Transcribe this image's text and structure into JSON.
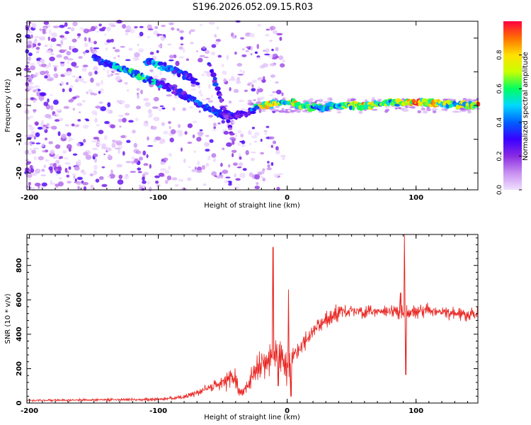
{
  "title": "S196.2026.052.09.15.R03",
  "chart_data": [
    {
      "type": "heatmap",
      "xlabel": "Height of straight line (km)",
      "ylabel": "Frequency (Hz)",
      "xlim": [
        -202,
        148
      ],
      "ylim": [
        -25,
        25
      ],
      "xticks": [
        -200,
        -100,
        0,
        100
      ],
      "yticks": [
        -20,
        -10,
        0,
        10,
        20
      ],
      "xtick_labels": [
        "-200",
        "-100",
        "0",
        "100"
      ],
      "ytick_labels": [
        "-20",
        "-10",
        "0",
        "10",
        "20"
      ],
      "colorbar": {
        "label": "Normalized spectral amplitude",
        "range": [
          0,
          1
        ],
        "ticks": [
          0.0,
          0.2,
          0.4,
          0.6,
          0.8
        ],
        "tick_labels": [
          "0.0",
          "0.2",
          "0.4",
          "0.6",
          "0.8"
        ],
        "colors": [
          "#f0e0ff",
          "#c890f0",
          "#8a2be2",
          "#3a00ff",
          "#0060ff",
          "#00d8ff",
          "#00ff60",
          "#c8ff00",
          "#ffe000",
          "#ff7000",
          "#ff0040"
        ]
      },
      "ridges": [
        {
          "name": "main band",
          "x": [
            -150,
            -140,
            -130,
            -120,
            -110,
            -100,
            -90,
            -80,
            -70,
            -60,
            -50,
            -40,
            -30,
            -20,
            -10,
            0,
            10,
            20,
            30,
            40,
            50,
            60,
            70,
            80,
            90,
            100,
            110,
            120,
            130,
            140,
            148
          ],
          "y": [
            14,
            12.5,
            11,
            9.5,
            8,
            6.5,
            5,
            3,
            1,
            -1,
            -3,
            -3,
            -2,
            0,
            0.5,
            1.5,
            0,
            -0.5,
            -0.5,
            0,
            0,
            0,
            0.2,
            0.8,
            1,
            1,
            0.8,
            0.5,
            0.3,
            0.2,
            0.2
          ],
          "amplitude": [
            0.35,
            0.45,
            0.5,
            0.55,
            0.6,
            0.45,
            0.3,
            0.35,
            0.4,
            0.4,
            0.35,
            0.3,
            0.3,
            0.75,
            0.8,
            0.6,
            0.85,
            0.55,
            0.55,
            0.6,
            0.7,
            0.85,
            0.7,
            0.6,
            0.8,
            0.95,
            0.9,
            0.7,
            0.7,
            0.75,
            0.85
          ]
        },
        {
          "name": "upper branch",
          "x": [
            -110,
            -100,
            -90,
            -80,
            -70
          ],
          "y": [
            13,
            12,
            11,
            9,
            7
          ],
          "amplitude": [
            0.4,
            0.5,
            0.4,
            0.35,
            0.3
          ]
        },
        {
          "name": "dispersive tail",
          "x": [
            -60,
            -55,
            -50,
            -45,
            -42,
            -40
          ],
          "y": [
            12,
            6,
            0,
            -5,
            -10,
            -18
          ],
          "amplitude": [
            0.35,
            0.35,
            0.3,
            0.25,
            0.15,
            0.1
          ]
        }
      ]
    },
    {
      "type": "line",
      "xlabel": "Height of straight line (km)",
      "ylabel": "SNR (10 * v/v)",
      "xlim": [
        -202,
        148
      ],
      "ylim": [
        0,
        980
      ],
      "xticks": [
        -200,
        -100,
        0,
        100
      ],
      "yticks": [
        0,
        200,
        400,
        600,
        800
      ],
      "xtick_labels": [
        "-200",
        "-100",
        "0",
        "100"
      ],
      "ytick_labels": [
        "0",
        "200",
        "400",
        "600",
        "800"
      ],
      "series": [
        {
          "name": "SNR",
          "color": "#e8201c",
          "envelope_x": [
            -202,
            -150,
            -120,
            -100,
            -80,
            -70,
            -60,
            -50,
            -45,
            -40,
            -35,
            -30,
            -25,
            -20,
            -15,
            -10,
            -5,
            0,
            5,
            10,
            20,
            30,
            40,
            50,
            60,
            70,
            80,
            90,
            100,
            110,
            120,
            130,
            140,
            148
          ],
          "baseline": [
            15,
            18,
            20,
            22,
            35,
            60,
            90,
            120,
            150,
            130,
            60,
            120,
            180,
            220,
            240,
            260,
            280,
            200,
            250,
            320,
            420,
            480,
            530,
            540,
            530,
            530,
            530,
            520,
            530,
            540,
            530,
            520,
            520,
            520
          ],
          "noise": [
            10,
            10,
            12,
            15,
            20,
            30,
            40,
            70,
            100,
            110,
            40,
            80,
            120,
            150,
            150,
            170,
            160,
            150,
            120,
            90,
            80,
            70,
            70,
            60,
            60,
            60,
            60,
            70,
            60,
            60,
            60,
            60,
            60,
            60
          ],
          "spikes": [
            {
              "x": -11,
              "y": 905
            },
            {
              "x": -7,
              "y": 100
            },
            {
              "x": 1,
              "y": 660
            },
            {
              "x": 3,
              "y": 40
            },
            {
              "x": 88,
              "y": 640
            },
            {
              "x": 91,
              "y": 980
            },
            {
              "x": 92,
              "y": 165
            },
            {
              "x": 95,
              "y": 500
            }
          ]
        }
      ]
    }
  ]
}
